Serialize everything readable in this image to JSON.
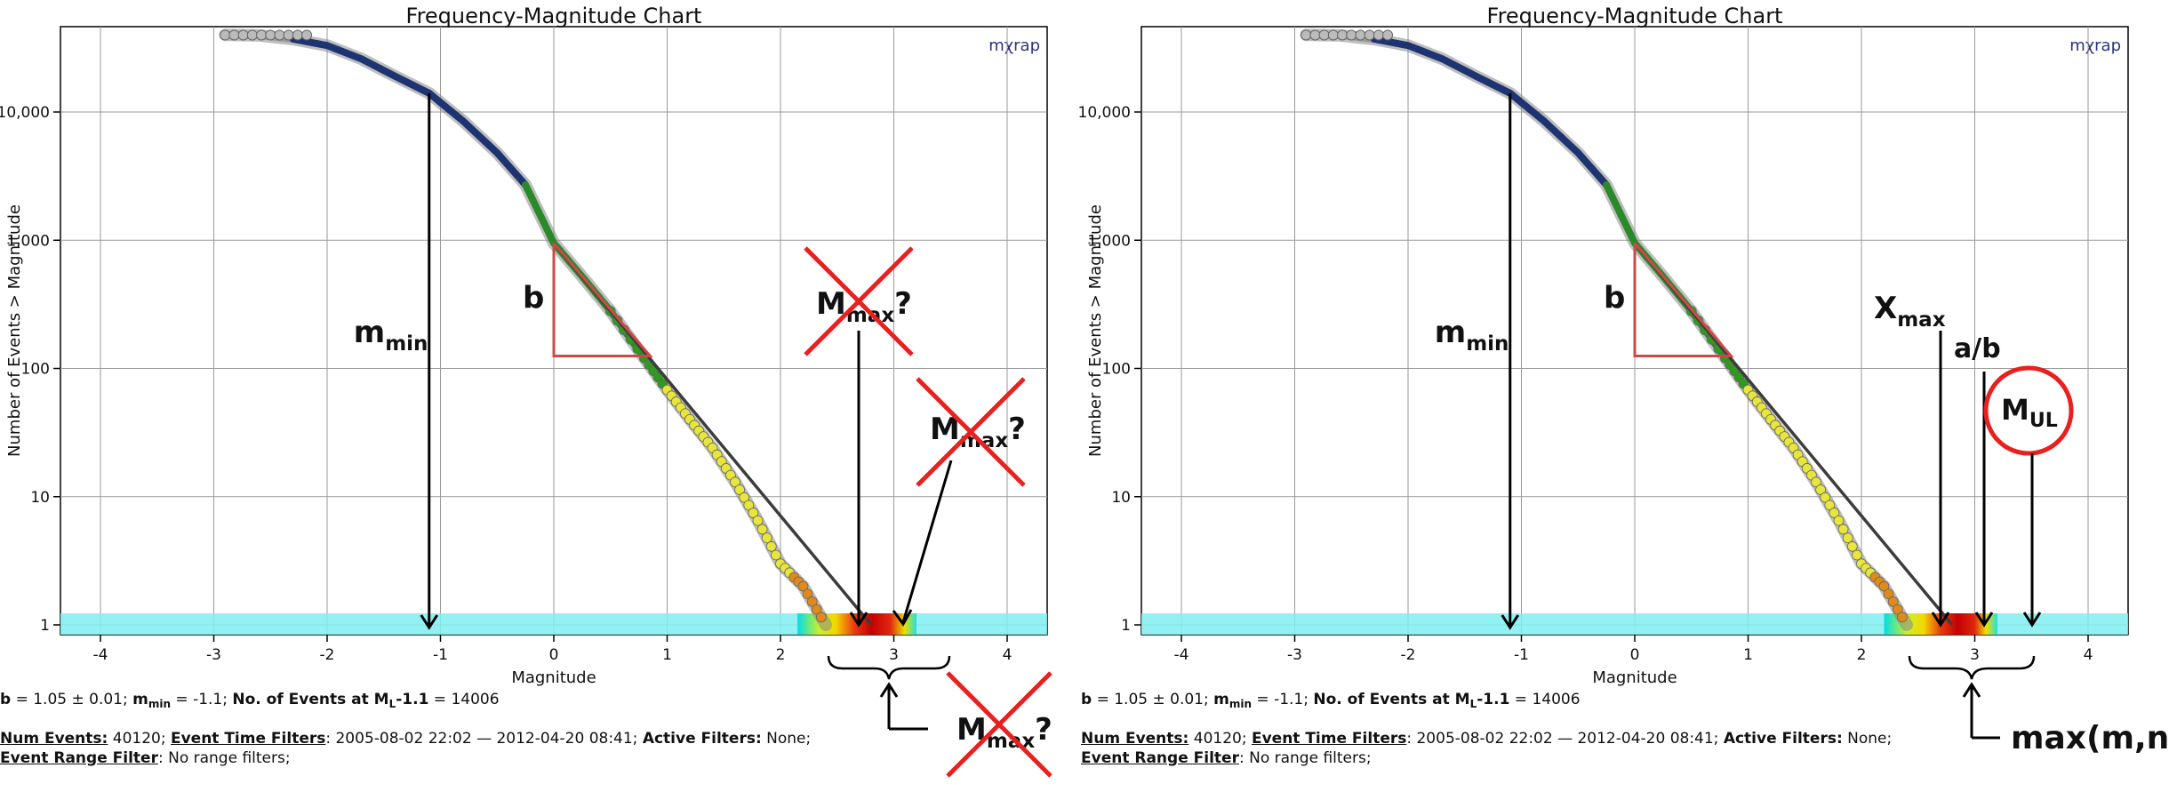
{
  "panels": [
    {
      "title": "Frequency-Magnitude Chart",
      "logo": "mχrap",
      "ylabel": "Number of Events > Magnitude",
      "xlabel": "Magnitude",
      "xticks": [
        "-4",
        "-3",
        "-2",
        "-1",
        "0",
        "1",
        "2",
        "3",
        "4"
      ],
      "yticks": [
        "1",
        "10",
        "100",
        "1,000",
        "10,000"
      ],
      "stats": {
        "b_label": "b",
        "b_value": " = 1.05 ± 0.01; ",
        "mmin_label": "m",
        "mmin_sub": "min",
        "mmin_value": " = -1.1; ",
        "events_label": "No. of Events at M",
        "events_sub": "L",
        "events_label2": "-1.1",
        "events_value": " = 14006"
      },
      "filters": {
        "num_events_label": "Num Events:",
        "num_events_value": " 40120; ",
        "time_label": "Event Time Filters",
        "time_value": ": 2005-08-02 22:02 — 2012-04-20 08:41; ",
        "active_label": "Active Filters:",
        "active_value": " None;",
        "range_label": "Event Range Filter",
        "range_value": ": No range filters;"
      },
      "annotations": {
        "b": "b",
        "mmin_main": "m",
        "mmin_sub": "min",
        "mmax1_main": "M",
        "mmax1_sub": "max",
        "mmax1_q": "?",
        "mmax2_main": "M",
        "mmax2_sub": "max",
        "mmax2_q": "?",
        "mmax3_main": "M",
        "mmax3_sub": "max",
        "mmax3_q": "?"
      }
    },
    {
      "title": "Frequency-Magnitude Chart",
      "logo": "mχrap",
      "ylabel": "Number of Events > Magnitude",
      "xlabel": "Magnitude",
      "xticks": [
        "-4",
        "-3",
        "-2",
        "-1",
        "0",
        "1",
        "2",
        "3",
        "4"
      ],
      "yticks": [
        "1",
        "10",
        "100",
        "1,000",
        "10,000"
      ],
      "stats": {
        "b_label": "b",
        "b_value": " = 1.05 ± 0.01; ",
        "mmin_label": "m",
        "mmin_sub": "min",
        "mmin_value": " = -1.1; ",
        "events_label": "No. of Events at M",
        "events_sub": "L",
        "events_label2": "-1.1",
        "events_value": " = 14006"
      },
      "filters": {
        "num_events_label": "Num Events:",
        "num_events_value": " 40120; ",
        "time_label": "Event Time Filters",
        "time_value": ": 2005-08-02 22:02 — 2012-04-20 08:41; ",
        "active_label": "Active Filters:",
        "active_value": " None;",
        "range_label": "Event Range Filter",
        "range_value": ": No range filters;"
      },
      "annotations": {
        "b": "b",
        "mmin_main": "m",
        "mmin_sub": "min",
        "xmax_main": "X",
        "xmax_sub": "max",
        "ab": "a/b",
        "mul_main": "M",
        "mul_sub": "UL",
        "maxmn": "max(m,n)"
      }
    }
  ],
  "colors": {
    "bg": "#ffffff",
    "grid": "#9a9a9a",
    "axis": "#000000",
    "fit_line": "#3c3c3c",
    "triangle": "#d04848",
    "cross": "#e82020",
    "circle": "#e82020",
    "cyan_band": "#7feef0",
    "curve_dark": "#1e3472",
    "curve_mid": "#2a8a2a",
    "points_green": "#2e9a1e",
    "points_yellow": "#e8e63a",
    "points_orange": "#e08a1a",
    "logo": "#2a3580"
  },
  "chart_data": [
    {
      "type": "scatter",
      "title": "Frequency-Magnitude Chart",
      "xlabel": "Magnitude",
      "ylabel": "Number of Events > Magnitude",
      "xlim": [
        -4,
        4
      ],
      "ylim": [
        1,
        40000
      ],
      "y_scale": "log",
      "grid": true,
      "b_value": 1.05,
      "m_min": -1.1,
      "events_at_mmin": 14006,
      "num_events": 40120,
      "cumulative_curve": {
        "x": [
          -2.9,
          -2.6,
          -2.3,
          -2.0,
          -1.7,
          -1.4,
          -1.1,
          -0.8,
          -0.5,
          -0.25,
          0.0,
          0.25,
          0.5,
          0.8,
          1.0,
          1.2,
          1.4,
          1.6,
          1.8,
          2.0,
          2.2,
          2.4
        ],
        "y": [
          40000,
          39500,
          37000,
          33000,
          26000,
          19000,
          14006,
          8500,
          4800,
          2700,
          950,
          520,
          280,
          120,
          68,
          40,
          24,
          13,
          6.5,
          3,
          2,
          1
        ]
      },
      "fit_line": {
        "x": [
          0.0,
          2.8
        ],
        "y": [
          950,
          1
        ]
      }
    },
    {
      "type": "scatter",
      "title": "Frequency-Magnitude Chart",
      "xlabel": "Magnitude",
      "ylabel": "Number of Events > Magnitude",
      "xlim": [
        -4,
        4
      ],
      "ylim": [
        1,
        40000
      ],
      "y_scale": "log",
      "grid": true,
      "b_value": 1.05,
      "m_min": -1.1,
      "events_at_mmin": 14006,
      "num_events": 40120,
      "cumulative_curve": {
        "x": [
          -2.9,
          -2.6,
          -2.3,
          -2.0,
          -1.7,
          -1.4,
          -1.1,
          -0.8,
          -0.5,
          -0.25,
          0.0,
          0.25,
          0.5,
          0.8,
          1.0,
          1.2,
          1.4,
          1.6,
          1.8,
          2.0,
          2.2,
          2.4
        ],
        "y": [
          40000,
          39500,
          37000,
          33000,
          26000,
          19000,
          14006,
          8500,
          4800,
          2700,
          950,
          520,
          280,
          120,
          68,
          40,
          24,
          13,
          6.5,
          3,
          2,
          1
        ]
      },
      "fit_line": {
        "x": [
          0.0,
          2.8
        ],
        "y": [
          950,
          1
        ]
      }
    }
  ]
}
